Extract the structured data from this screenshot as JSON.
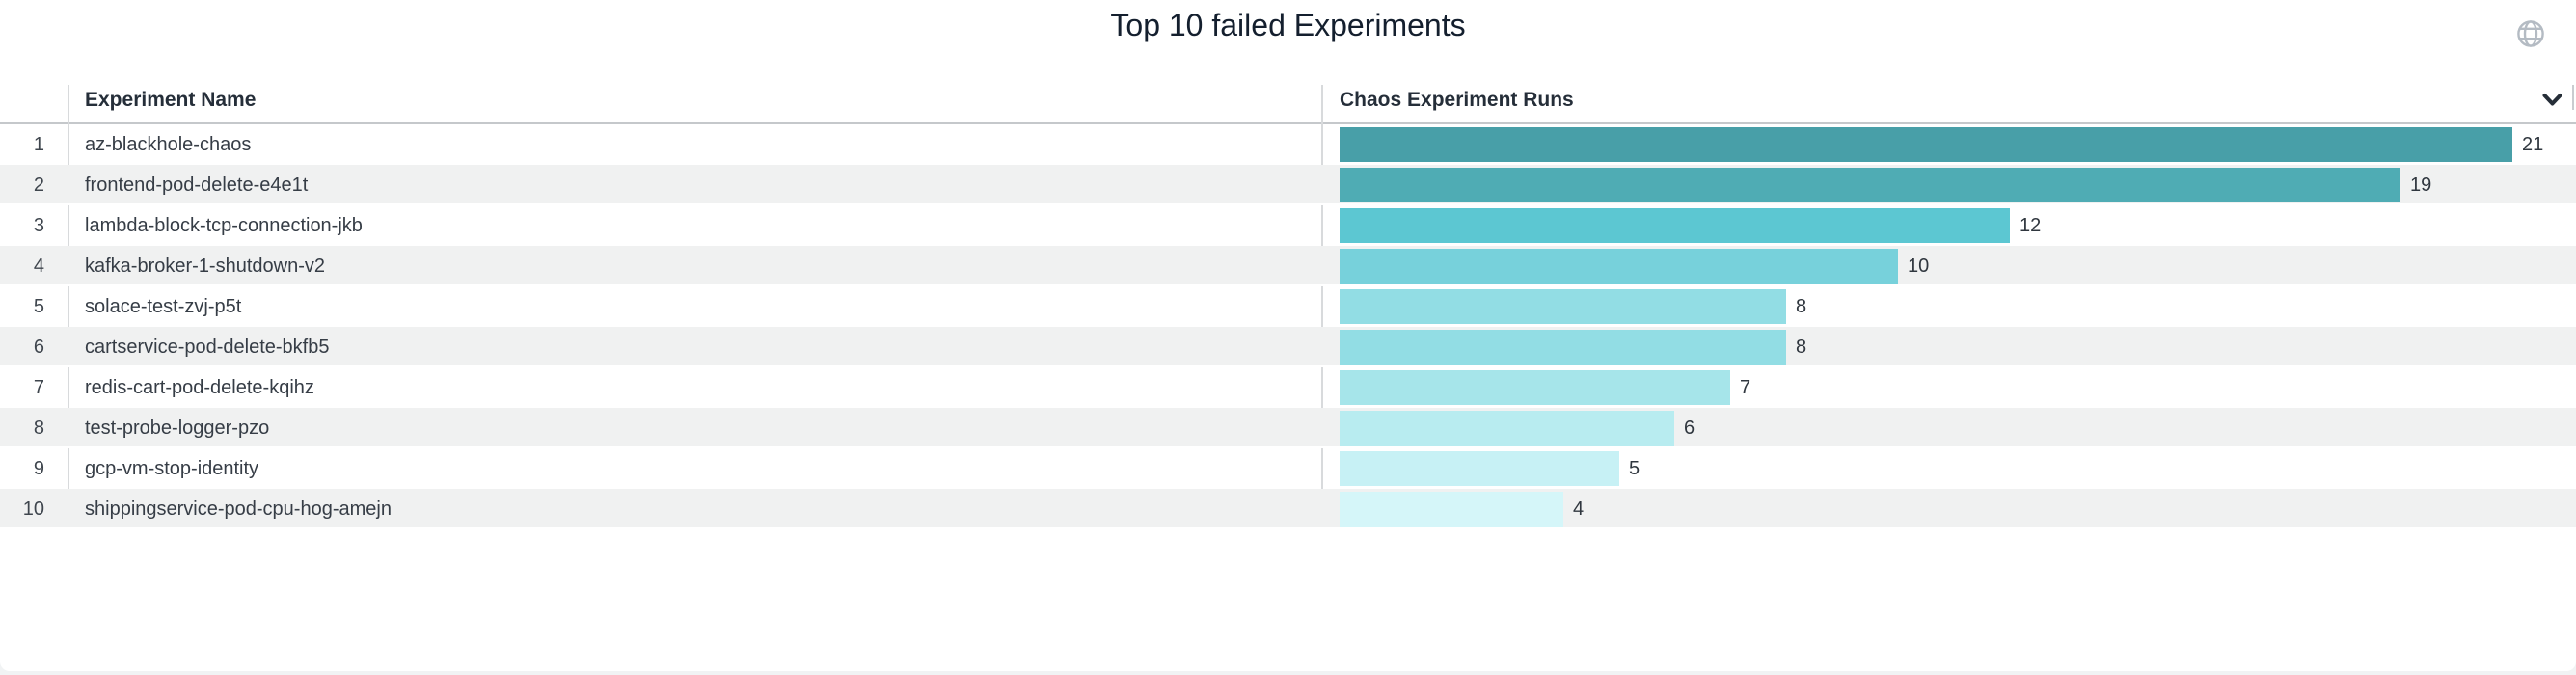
{
  "card": {
    "title": "Top 10 failed Experiments"
  },
  "icons": {
    "globe": "globe-icon",
    "collapse": "chevron-down-icon"
  },
  "table": {
    "columns": [
      {
        "label": "Experiment Name"
      },
      {
        "label": "Chaos Experiment Runs"
      }
    ],
    "rows": [
      {
        "rank": "1",
        "name": "az-blackhole-chaos",
        "runs": 21,
        "bar_color": "#489fa8"
      },
      {
        "rank": "2",
        "name": "frontend-pod-delete-e4e1t",
        "runs": 19,
        "bar_color": "#4facb4"
      },
      {
        "rank": "3",
        "name": "lambda-block-tcp-connection-jkb",
        "runs": 12,
        "bar_color": "#5cc7d2"
      },
      {
        "rank": "4",
        "name": "kafka-broker-1-shutdown-v2",
        "runs": 10,
        "bar_color": "#77d1db"
      },
      {
        "rank": "5",
        "name": "solace-test-zvj-p5t",
        "runs": 8,
        "bar_color": "#92dde4"
      },
      {
        "rank": "6",
        "name": "cartservice-pod-delete-bkfb5",
        "runs": 8,
        "bar_color": "#92dde4"
      },
      {
        "rank": "7",
        "name": "redis-cart-pod-delete-kqihz",
        "runs": 7,
        "bar_color": "#a6e5ea"
      },
      {
        "rank": "8",
        "name": "test-probe-logger-pzo",
        "runs": 6,
        "bar_color": "#b8ecf0"
      },
      {
        "rank": "9",
        "name": "gcp-vm-stop-identity",
        "runs": 5,
        "bar_color": "#c7f1f5"
      },
      {
        "rank": "10",
        "name": "shippingservice-pod-cpu-hog-amejn",
        "runs": 4,
        "bar_color": "#d5f6f9"
      }
    ]
  },
  "colors": {
    "row_stripe": "#f0f1f1",
    "column_separator": "#d8dadc",
    "header_rule": "#c5c8cb",
    "title_text": "#141f2e",
    "header_text": "#252e39",
    "body_text": "#363d46",
    "icon_gray": "#b4bbc3",
    "icon_dark": "#262e38"
  },
  "chart_data": {
    "type": "bar",
    "orientation": "horizontal",
    "title": "Top 10 failed Experiments",
    "categories": [
      "az-blackhole-chaos",
      "frontend-pod-delete-e4e1t",
      "lambda-block-tcp-connection-jkb",
      "kafka-broker-1-shutdown-v2",
      "solace-test-zvj-p5t",
      "cartservice-pod-delete-bkfb5",
      "redis-cart-pod-delete-kqihz",
      "test-probe-logger-pzo",
      "gcp-vm-stop-identity",
      "shippingservice-pod-cpu-hog-amejn"
    ],
    "values": [
      21,
      19,
      12,
      10,
      8,
      8,
      7,
      6,
      5,
      4
    ],
    "value_axis_label": "Chaos Experiment Runs",
    "category_axis_label": "Experiment Name",
    "xlim": [
      0,
      21.6
    ],
    "grid": false,
    "legend": "none",
    "data_labels": true,
    "bar_colors": [
      "#489fa8",
      "#4facb4",
      "#5cc7d2",
      "#77d1db",
      "#92dde4",
      "#92dde4",
      "#a6e5ea",
      "#b8ecf0",
      "#c7f1f5",
      "#d5f6f9"
    ]
  }
}
